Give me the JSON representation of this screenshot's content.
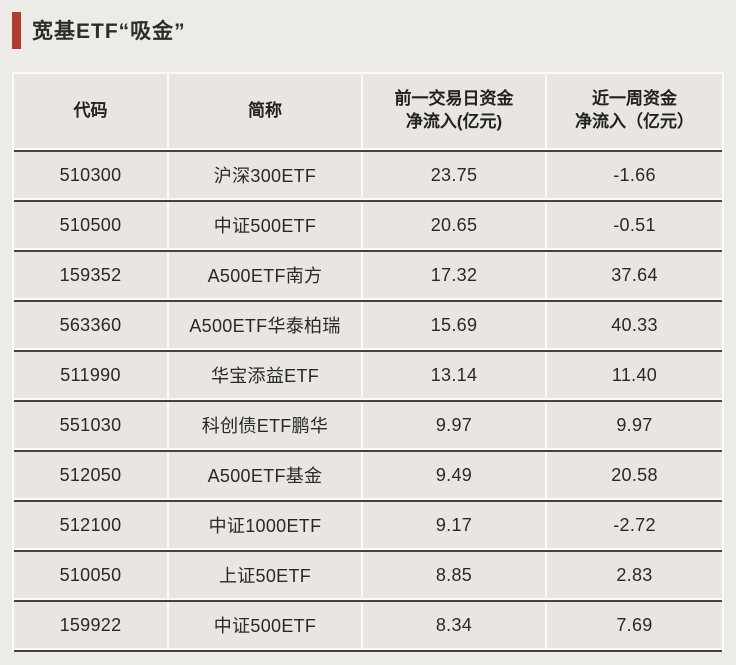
{
  "accent_color": "#b23b31",
  "title": "宽基ETF“吸金”",
  "table": {
    "headers": {
      "code": "代码",
      "name": "简称",
      "prev_day": "前一交易日资金\n净流入(亿元)",
      "week": "近一周资金\n净流入（亿元）"
    },
    "rows": [
      {
        "code": "510300",
        "name": "沪深300ETF",
        "prev_day_inflow": "23.75",
        "week_inflow": "-1.66"
      },
      {
        "code": "510500",
        "name": "中证500ETF",
        "prev_day_inflow": "20.65",
        "week_inflow": "-0.51"
      },
      {
        "code": "159352",
        "name": "A500ETF南方",
        "prev_day_inflow": "17.32",
        "week_inflow": "37.64"
      },
      {
        "code": "563360",
        "name": "A500ETF华泰柏瑞",
        "prev_day_inflow": "15.69",
        "week_inflow": "40.33"
      },
      {
        "code": "511990",
        "name": "华宝添益ETF",
        "prev_day_inflow": "13.14",
        "week_inflow": "11.40"
      },
      {
        "code": "551030",
        "name": "科创债ETF鹏华",
        "prev_day_inflow": "9.97",
        "week_inflow": "9.97"
      },
      {
        "code": "512050",
        "name": "A500ETF基金",
        "prev_day_inflow": "9.49",
        "week_inflow": "20.58"
      },
      {
        "code": "512100",
        "name": "中证1000ETF",
        "prev_day_inflow": "9.17",
        "week_inflow": "-2.72"
      },
      {
        "code": "510050",
        "name": "上证50ETF",
        "prev_day_inflow": "8.85",
        "week_inflow": "2.83"
      },
      {
        "code": "159922",
        "name": "中证500ETF",
        "prev_day_inflow": "8.34",
        "week_inflow": "7.69"
      }
    ]
  }
}
